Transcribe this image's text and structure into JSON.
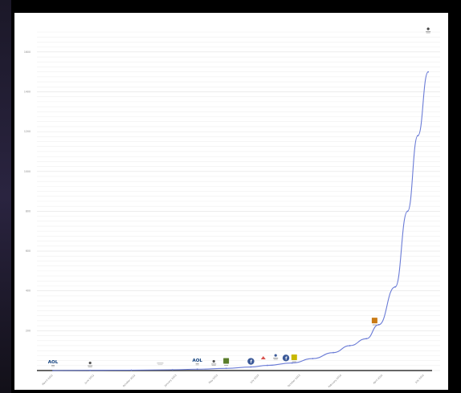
{
  "chart_data": {
    "type": "line",
    "title": "",
    "xlabel": "",
    "ylabel": "",
    "y_ticks": [
      "200",
      "400",
      "600",
      "800",
      "1000",
      "1200",
      "1400",
      "1600"
    ],
    "ylim": [
      0,
      1700
    ],
    "x_ticks": [
      "March 2012",
      "June 2012",
      "October 2012",
      "January 2013",
      "May 2013",
      "July 2013",
      "October 2013",
      "February 2014",
      "April 2014",
      "July 2014"
    ],
    "grid": true,
    "series": [
      {
        "values": [
          0,
          1,
          2,
          4,
          7,
          11,
          18,
          26,
          38,
          60,
          90,
          125,
          160,
          230,
          420,
          800,
          1180,
          1500
        ]
      }
    ],
    "point_x_index": [
      0,
      0.9,
      1.9,
      2.9,
      3.5,
      4.2,
      4.8,
      5.2,
      5.8,
      6.3,
      6.8,
      7.2,
      7.6,
      7.9,
      8.3,
      8.6,
      8.85,
      9.1
    ],
    "annotations": [
      {
        "label": "AOL",
        "kind": "text-logo",
        "color": "#0a3b7a",
        "x_index": 0.0,
        "value": 0
      },
      {
        "label": "",
        "kind": "small-logo",
        "color": "#555555",
        "x_index": 0.9,
        "value": 2
      },
      {
        "label": "",
        "kind": "faint-logo",
        "color": "#bbbbbb",
        "x_index": 2.6,
        "value": 3
      },
      {
        "label": "AOL",
        "kind": "text-logo",
        "color": "#0a3b7a",
        "x_index": 3.5,
        "value": 8
      },
      {
        "label": "",
        "kind": "small-logo",
        "color": "#555555",
        "x_index": 3.9,
        "value": 10
      },
      {
        "label": "",
        "kind": "square-logo",
        "color": "#5a7d2a",
        "x_index": 4.2,
        "value": 12
      },
      {
        "label": "f",
        "kind": "facebook-logo",
        "color": "#3b5998",
        "x_index": 4.8,
        "value": 18
      },
      {
        "label": "",
        "kind": "red-logo",
        "color": "#d9534f",
        "x_index": 5.1,
        "value": 20
      },
      {
        "label": "",
        "kind": "small-logo",
        "color": "#3b5998",
        "x_index": 5.4,
        "value": 40
      },
      {
        "label": "f",
        "kind": "facebook-logo",
        "color": "#3b5998",
        "x_index": 5.65,
        "value": 35
      },
      {
        "label": "",
        "kind": "square-logo",
        "color": "#c8b800",
        "x_index": 5.85,
        "value": 30
      },
      {
        "label": "",
        "kind": "square-logo",
        "color": "#c97b15",
        "x_index": 7.8,
        "value": 215
      },
      {
        "label": "",
        "kind": "small-logo",
        "color": "#444444",
        "x_index": 9.1,
        "value": 1680
      }
    ]
  }
}
